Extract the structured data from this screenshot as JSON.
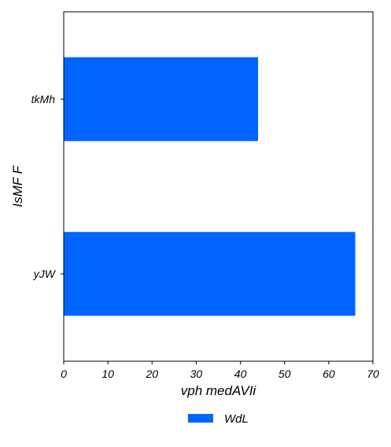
{
  "chart_data": {
    "type": "bar",
    "orientation": "horizontal",
    "categories": [
      "tkMh",
      "yJW"
    ],
    "series": [
      {
        "name": "WdL",
        "values": [
          44,
          66
        ],
        "color": "#0064ff"
      }
    ],
    "xlabel": "vph medAVIi",
    "ylabel": "IsMF F",
    "xlim": [
      0,
      70
    ],
    "xticks": [
      0,
      10,
      20,
      30,
      40,
      50,
      60,
      70
    ],
    "grid": false,
    "legend_position": "bottom-center"
  }
}
